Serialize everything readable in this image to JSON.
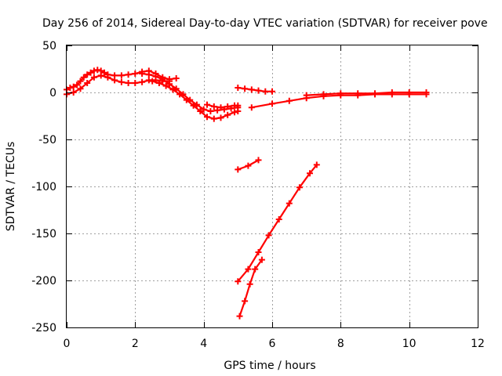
{
  "chart_data": {
    "type": "scatter",
    "title": "Day 256 of 2014, Sidereal Day-to-day VTEC variation (SDTVAR) for receiver pove",
    "xlabel": "GPS time / hours",
    "ylabel": "SDTVAR / TECUs",
    "xlim": [
      0,
      12
    ],
    "ylim": [
      -250,
      50
    ],
    "x_ticks": [
      "0",
      "2",
      "4",
      "6",
      "8",
      "10",
      "12"
    ],
    "y_ticks": [
      "50",
      "0",
      "-50",
      "-100",
      "-150",
      "-200",
      "-250"
    ],
    "grid": true,
    "marker": "+",
    "colors": {
      "series": "#ff0000"
    },
    "series": [
      {
        "x": [
          0.0,
          0.1,
          0.2,
          0.3,
          0.4,
          0.5,
          0.6,
          0.7,
          0.8,
          0.9,
          1.0,
          1.1,
          1.2,
          1.4,
          1.6,
          1.8,
          2.0,
          2.2,
          2.4,
          2.6,
          2.8,
          3.0,
          3.2
        ],
        "y": [
          3,
          5,
          6,
          8,
          12,
          16,
          19,
          21,
          23,
          24,
          23,
          21,
          19,
          18,
          18,
          19,
          20,
          22,
          23,
          20,
          16,
          14,
          15
        ]
      },
      {
        "x": [
          0.0,
          0.2,
          0.4,
          0.6,
          0.8,
          1.0,
          1.2,
          1.4,
          1.6,
          1.8,
          2.0,
          2.2,
          2.4,
          2.6,
          2.8,
          3.0
        ],
        "y": [
          -2,
          0,
          4,
          10,
          16,
          18,
          16,
          13,
          11,
          10,
          10,
          11,
          13,
          13,
          12,
          12
        ]
      },
      {
        "x": [
          2.2,
          2.4,
          2.6,
          2.8,
          3.0,
          3.2,
          3.4,
          3.6,
          3.8,
          4.0,
          4.2,
          4.4,
          4.6,
          4.8,
          5.0
        ],
        "y": [
          20,
          19,
          17,
          14,
          9,
          4,
          -2,
          -8,
          -13,
          -18,
          -20,
          -19,
          -18,
          -17,
          -16
        ]
      },
      {
        "x": [
          2.5,
          2.7,
          2.9,
          3.1,
          3.3,
          3.5,
          3.7,
          3.9,
          4.1,
          4.3,
          4.5,
          4.7,
          4.9,
          5.0
        ],
        "y": [
          12,
          10,
          7,
          3,
          -2,
          -8,
          -14,
          -20,
          -26,
          -28,
          -27,
          -24,
          -21,
          -20
        ]
      },
      {
        "x": [
          4.1,
          4.3,
          4.5,
          4.7,
          4.9,
          5.0
        ],
        "y": [
          -13,
          -15,
          -16,
          -15,
          -14,
          -14
        ]
      },
      {
        "x": [
          5.0,
          5.2,
          5.4,
          5.6,
          5.8,
          6.0
        ],
        "y": [
          5,
          4,
          3,
          2,
          1,
          1
        ]
      },
      {
        "x": [
          5.4,
          6.0,
          6.5,
          7.0,
          7.5,
          8.0,
          8.5,
          9.0,
          9.5,
          10.0,
          10.5
        ],
        "y": [
          -16,
          -12,
          -9,
          -6,
          -4,
          -3,
          -3,
          -2,
          -2,
          -2,
          -2
        ]
      },
      {
        "x": [
          7.0,
          7.5,
          8.0,
          8.5,
          9.0,
          9.5,
          10.0,
          10.5
        ],
        "y": [
          -3,
          -2,
          -1,
          -1,
          -1,
          0,
          0,
          0
        ]
      },
      {
        "x": [
          5.0,
          5.3,
          5.6
        ],
        "y": [
          -82,
          -78,
          -72
        ]
      },
      {
        "x": [
          5.0,
          5.3,
          5.6,
          5.9,
          6.2,
          6.5,
          6.8,
          7.1,
          7.3
        ],
        "y": [
          -201,
          -188,
          -170,
          -152,
          -135,
          -118,
          -101,
          -86,
          -77
        ]
      },
      {
        "x": [
          5.05,
          5.2,
          5.35,
          5.5,
          5.7
        ],
        "y": [
          -238,
          -222,
          -204,
          -188,
          -178
        ]
      }
    ]
  }
}
